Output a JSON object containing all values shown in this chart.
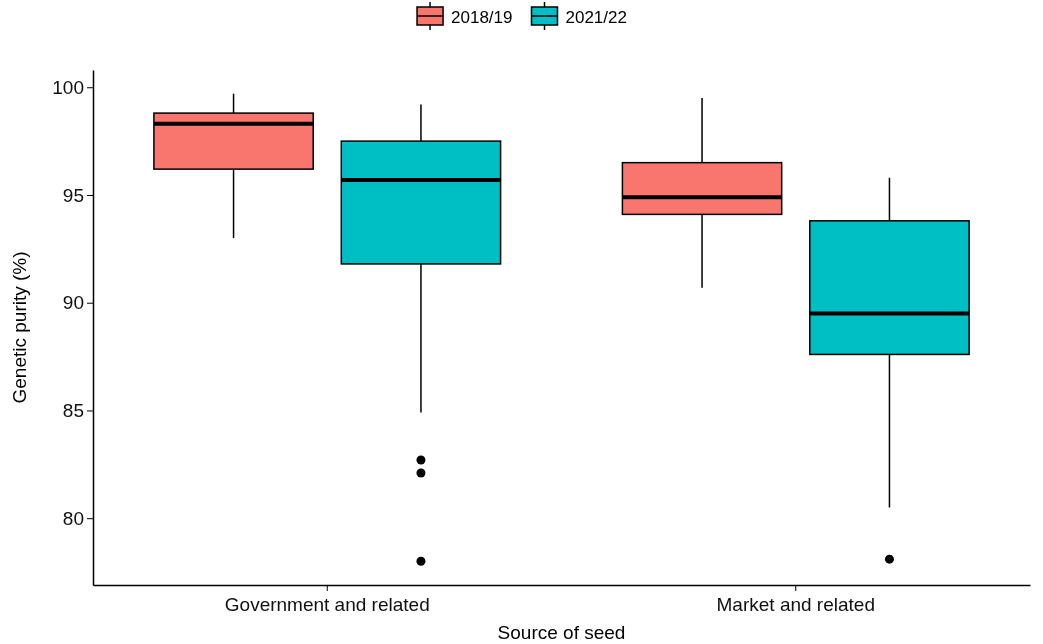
{
  "chart_data": {
    "type": "box",
    "xlabel": "Source of seed",
    "ylabel": "Genetic purity (%)",
    "categories": [
      "Government and related",
      "Market and related"
    ],
    "ylim": [
      76.9,
      100.8
    ],
    "yticks": [
      80,
      85,
      90,
      95,
      100
    ],
    "grid": false,
    "legend": "top",
    "series": [
      {
        "name": "2018/19",
        "color": "#f8766d",
        "boxes": [
          {
            "low": 93.0,
            "q1": 96.2,
            "median": 98.3,
            "q3": 98.8,
            "high": 99.7
          },
          {
            "low": 90.7,
            "q1": 94.1,
            "median": 94.9,
            "q3": 96.5,
            "high": 99.5
          }
        ]
      },
      {
        "name": "2021/22",
        "color": "#00bfc4",
        "boxes": [
          {
            "low": 84.9,
            "q1": 91.8,
            "median": 95.7,
            "q3": 97.5,
            "high": 99.2,
            "outliers": [
              82.7,
              82.1,
              78.0
            ]
          },
          {
            "low": 80.5,
            "q1": 87.6,
            "median": 89.5,
            "q3": 93.8,
            "high": 95.8,
            "outliers": [
              78.1
            ]
          }
        ]
      }
    ]
  }
}
